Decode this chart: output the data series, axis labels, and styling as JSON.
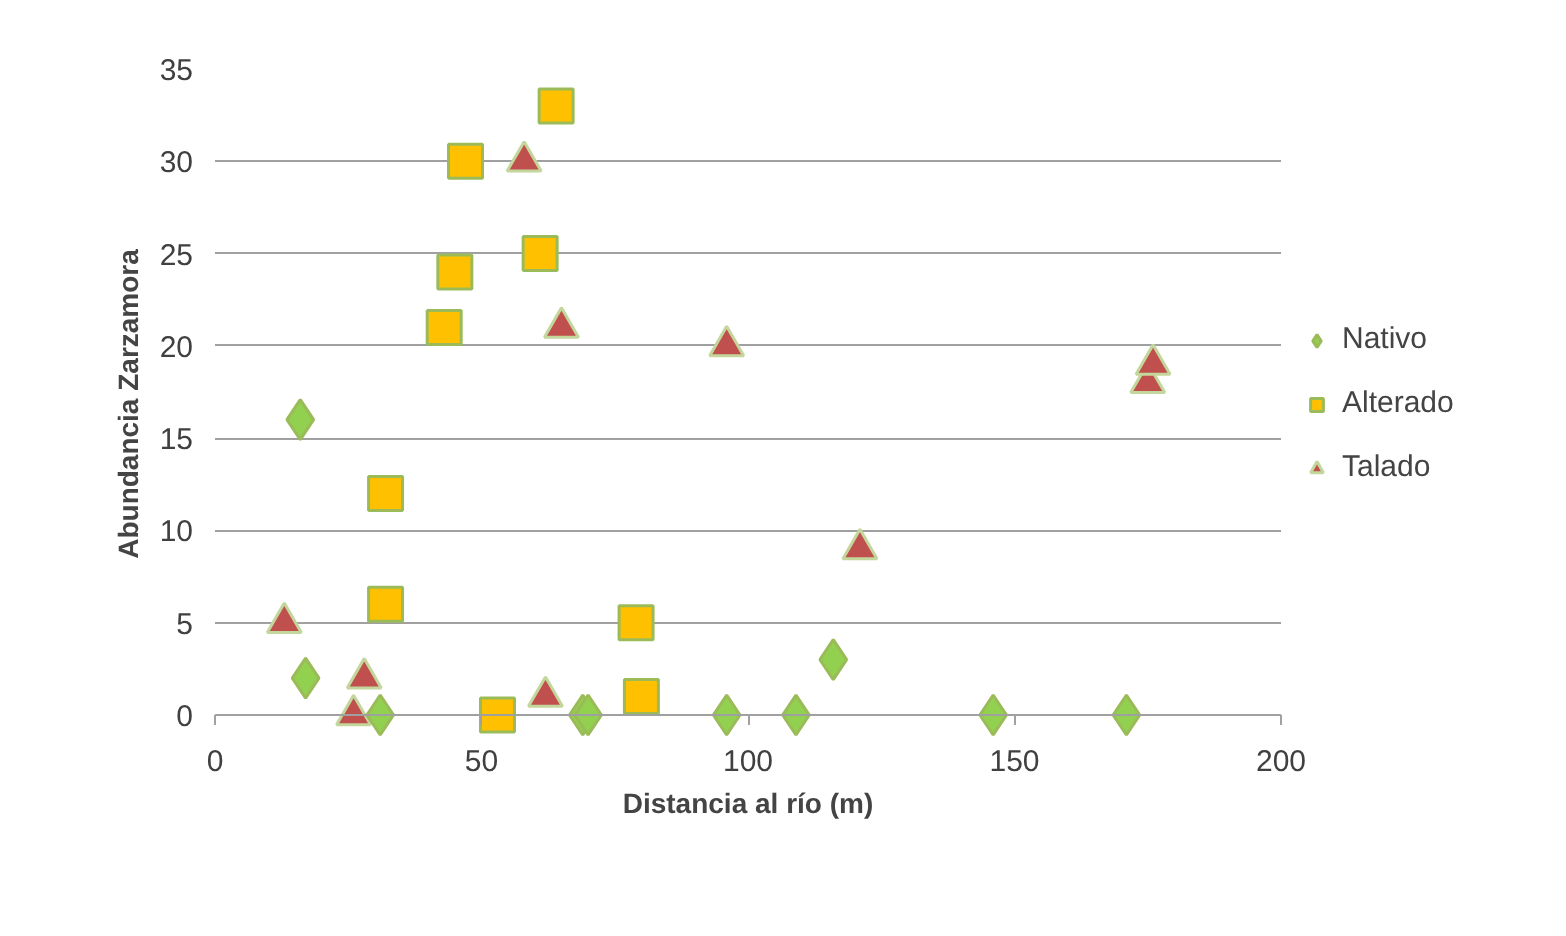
{
  "chart_data": {
    "type": "scatter",
    "xlabel": "Distancia al río (m)",
    "ylabel": "Abundancia Zarzamora",
    "xlim": [
      0,
      200
    ],
    "xticks": [
      0,
      50,
      100,
      150,
      200
    ],
    "ylim": [
      0,
      35
    ],
    "yticks": [
      0,
      5,
      10,
      15,
      20,
      25,
      30,
      35
    ],
    "grid": "y",
    "legend": "right",
    "series": [
      {
        "name": "Nativo",
        "color": "#92d050",
        "marker": "diamond",
        "x": [
          16,
          17,
          31,
          69,
          70,
          96,
          109,
          116,
          146,
          171
        ],
        "values": [
          16,
          2,
          0,
          0,
          0,
          0,
          0,
          3,
          0,
          0
        ]
      },
      {
        "name": "Alterado",
        "color": "#ffc000",
        "marker": "square",
        "x": [
          64,
          47,
          45,
          61,
          43,
          32,
          32,
          53,
          79,
          80
        ],
        "values": [
          33,
          30,
          24,
          25,
          21,
          12,
          6,
          0,
          5,
          1
        ]
      },
      {
        "name": "Talado",
        "color": "#c0504d",
        "marker": "triangle",
        "x": [
          58,
          65,
          96,
          13,
          28,
          26,
          62,
          121,
          175,
          176
        ],
        "values": [
          30,
          21,
          20,
          5,
          2,
          0,
          1,
          9,
          18,
          19
        ]
      }
    ]
  }
}
